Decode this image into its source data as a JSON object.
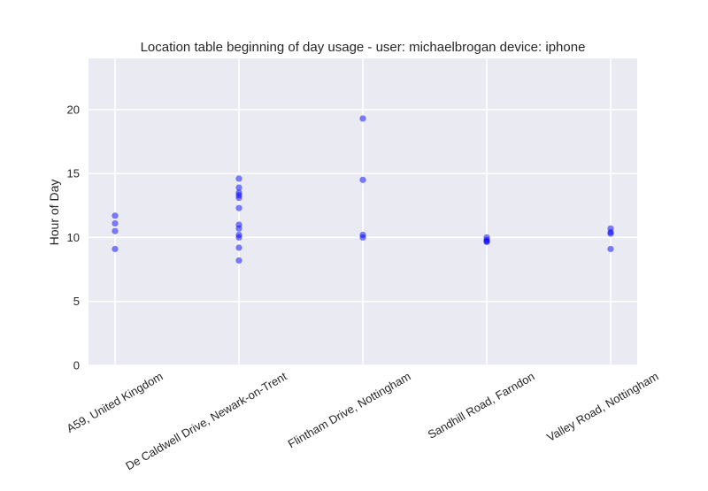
{
  "chart_data": {
    "type": "scatter",
    "title": "Location table beginning of day usage -  user: michaelbrogan device: iphone",
    "xlabel": "",
    "ylabel": "Hour of Day",
    "categories": [
      "A59, United Kingdom",
      "De Caldwell Drive, Newark-on-Trent",
      "Flintham Drive, Nottingham",
      "Sandhill Road, Farndon",
      "Valley Road, Nottingham"
    ],
    "yticks": [
      0,
      5,
      10,
      15,
      20
    ],
    "ylim": [
      0,
      24
    ],
    "grid": true,
    "point_color": "#0000ff",
    "background_color": "#eaeaf2",
    "points": [
      {
        "x": "A59, United Kingdom",
        "y": 11.7
      },
      {
        "x": "A59, United Kingdom",
        "y": 11.1
      },
      {
        "x": "A59, United Kingdom",
        "y": 10.5
      },
      {
        "x": "A59, United Kingdom",
        "y": 9.1
      },
      {
        "x": "De Caldwell Drive, Newark-on-Trent",
        "y": 14.6
      },
      {
        "x": "De Caldwell Drive, Newark-on-Trent",
        "y": 13.9
      },
      {
        "x": "De Caldwell Drive, Newark-on-Trent",
        "y": 13.5
      },
      {
        "x": "De Caldwell Drive, Newark-on-Trent",
        "y": 13.3
      },
      {
        "x": "De Caldwell Drive, Newark-on-Trent",
        "y": 13.1
      },
      {
        "x": "De Caldwell Drive, Newark-on-Trent",
        "y": 12.3
      },
      {
        "x": "De Caldwell Drive, Newark-on-Trent",
        "y": 11.0
      },
      {
        "x": "De Caldwell Drive, Newark-on-Trent",
        "y": 10.7
      },
      {
        "x": "De Caldwell Drive, Newark-on-Trent",
        "y": 10.2
      },
      {
        "x": "De Caldwell Drive, Newark-on-Trent",
        "y": 10.0
      },
      {
        "x": "De Caldwell Drive, Newark-on-Trent",
        "y": 9.2
      },
      {
        "x": "De Caldwell Drive, Newark-on-Trent",
        "y": 8.2
      },
      {
        "x": "Flintham Drive, Nottingham",
        "y": 19.3
      },
      {
        "x": "Flintham Drive, Nottingham",
        "y": 14.5
      },
      {
        "x": "Flintham Drive, Nottingham",
        "y": 10.2
      },
      {
        "x": "Flintham Drive, Nottingham",
        "y": 10.0
      },
      {
        "x": "Sandhill Road, Farndon",
        "y": 10.0
      },
      {
        "x": "Sandhill Road, Farndon",
        "y": 9.8
      },
      {
        "x": "Sandhill Road, Farndon",
        "y": 9.7
      },
      {
        "x": "Sandhill Road, Farndon",
        "y": 9.65
      },
      {
        "x": "Valley Road, Nottingham",
        "y": 10.7
      },
      {
        "x": "Valley Road, Nottingham",
        "y": 10.4
      },
      {
        "x": "Valley Road, Nottingham",
        "y": 10.3
      },
      {
        "x": "Valley Road, Nottingham",
        "y": 9.1
      }
    ]
  }
}
